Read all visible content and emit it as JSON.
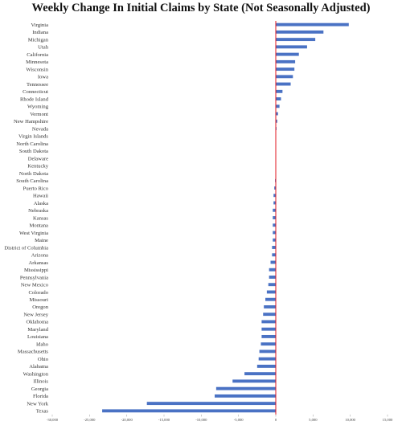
{
  "chart_data": {
    "type": "bar",
    "orientation": "horizontal",
    "title": "Weekly Change In Initial Claims by State (Not Seasonally Adjusted)",
    "xlabel": "",
    "ylabel": "",
    "xlim": [
      -30000,
      15000
    ],
    "x_ticks": [
      -30000,
      -25000,
      -20000,
      -15000,
      -10000,
      -5000,
      0,
      5000,
      10000,
      15000
    ],
    "x_tick_labels": [
      "-30,000",
      "-25,000",
      "-20,000",
      "-15,000",
      "-10,000",
      "-5,000",
      "0",
      "5,000",
      "10,000",
      "15,000"
    ],
    "grid": false,
    "legend": "none",
    "colors": {
      "bar": "#4a72c4",
      "zero_line": "#e0141e"
    },
    "categories": [
      "Virginia",
      "Indiana",
      "Michigan",
      "Utah",
      "California",
      "Minnesota",
      "Wisconsin",
      "Iowa",
      "Tennessee",
      "Connecticut",
      "Rhode Island",
      "Wyoming",
      "Vermont",
      "New Hampshire",
      "Nevada",
      "Virgin Islands",
      "North Carolina",
      "South Dakota",
      "Delaware",
      "Kentucky",
      "North Dakota",
      "South Carolina",
      "Puerto Rico",
      "Hawaii",
      "Alaska",
      "Nebraska",
      "Kansas",
      "Montana",
      "West Virginia",
      "Maine",
      "District of Columbia",
      "Arizona",
      "Arkansas",
      "Mississippi",
      "Pennsylvania",
      "New Mexico",
      "Colorado",
      "Missouri",
      "Oregon",
      "New Jersey",
      "Oklahoma",
      "Maryland",
      "Louisiana",
      "Idaho",
      "Massachusetts",
      "Ohio",
      "Alabama",
      "Washington",
      "Illinois",
      "Georgia",
      "Florida",
      "New York",
      "Texas"
    ],
    "values": [
      9800,
      6400,
      5300,
      4200,
      3100,
      2600,
      2500,
      2300,
      2000,
      900,
      700,
      500,
      300,
      200,
      100,
      0,
      0,
      0,
      0,
      0,
      0,
      -100,
      -200,
      -300,
      -300,
      -400,
      -400,
      -400,
      -400,
      -400,
      -500,
      -500,
      -700,
      -900,
      -900,
      -1000,
      -1200,
      -1400,
      -1600,
      -1700,
      -1900,
      -1900,
      -1900,
      -2000,
      -2200,
      -2300,
      -2500,
      -4200,
      -5800,
      -8000,
      -8200,
      -17300,
      -23300
    ]
  }
}
